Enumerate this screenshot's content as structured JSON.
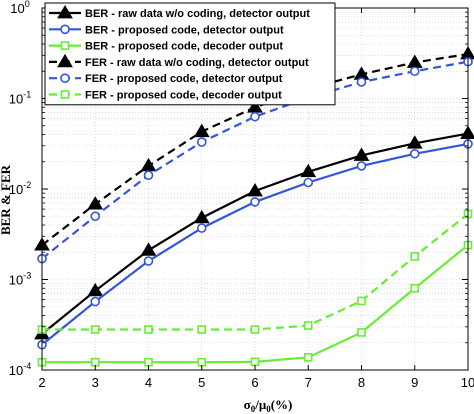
{
  "chart_data": {
    "type": "line",
    "xlabel_parts": [
      "σ",
      "0",
      "/μ",
      "0",
      "(%)"
    ],
    "ylabel": "BER & FER",
    "yscale": "log",
    "xlim": [
      2,
      10
    ],
    "ylim": [
      0.0001,
      1
    ],
    "x_ticks": [
      "2",
      "3",
      "4",
      "5",
      "6",
      "7",
      "8",
      "9",
      "10"
    ],
    "y_ticks": [
      {
        "base": "10",
        "exp": "-4"
      },
      {
        "base": "10",
        "exp": "-3"
      },
      {
        "base": "10",
        "exp": "-2"
      },
      {
        "base": "10",
        "exp": "-1"
      },
      {
        "base": "10",
        "exp": "0"
      }
    ],
    "grid": true,
    "legend_position": "top-left",
    "x": [
      2,
      3,
      4,
      5,
      6,
      7,
      8,
      9,
      10
    ],
    "series": [
      {
        "name": "BER - raw data w/o coding, detector output",
        "color": "#000000",
        "dash": "solid",
        "marker": "triangle",
        "values": [
          0.00025,
          0.00075,
          0.0021,
          0.0048,
          0.0095,
          0.0155,
          0.0235,
          0.032,
          0.041
        ]
      },
      {
        "name": "BER - proposed code, detector output",
        "color": "#3355dd",
        "dash": "solid",
        "marker": "circle",
        "values": [
          0.00019,
          0.00057,
          0.0016,
          0.0037,
          0.0072,
          0.0118,
          0.018,
          0.0245,
          0.0315
        ]
      },
      {
        "name": "BER - proposed code, decoder output",
        "color": "#66ee33",
        "dash": "solid",
        "marker": "square",
        "values": [
          0.000122,
          0.000122,
          0.000122,
          0.000122,
          0.000123,
          0.000138,
          0.00026,
          0.0008,
          0.0024
        ]
      },
      {
        "name": "FER - raw data w/o coding, detector output",
        "color": "#000000",
        "dash": "dashed",
        "marker": "triangle",
        "values": [
          0.0024,
          0.0068,
          0.018,
          0.043,
          0.08,
          0.128,
          0.185,
          0.25,
          0.31
        ]
      },
      {
        "name": "FER - proposed code, detector output",
        "color": "#3355dd",
        "dash": "dashed",
        "marker": "circle",
        "values": [
          0.0017,
          0.005,
          0.0142,
          0.033,
          0.063,
          0.102,
          0.152,
          0.2,
          0.255
        ]
      },
      {
        "name": "FER - proposed code, decoder output",
        "color": "#66ee33",
        "dash": "dashed",
        "marker": "square",
        "values": [
          0.00028,
          0.00028,
          0.00028,
          0.00028,
          0.00028,
          0.00031,
          0.00058,
          0.0018,
          0.0053
        ]
      }
    ]
  }
}
